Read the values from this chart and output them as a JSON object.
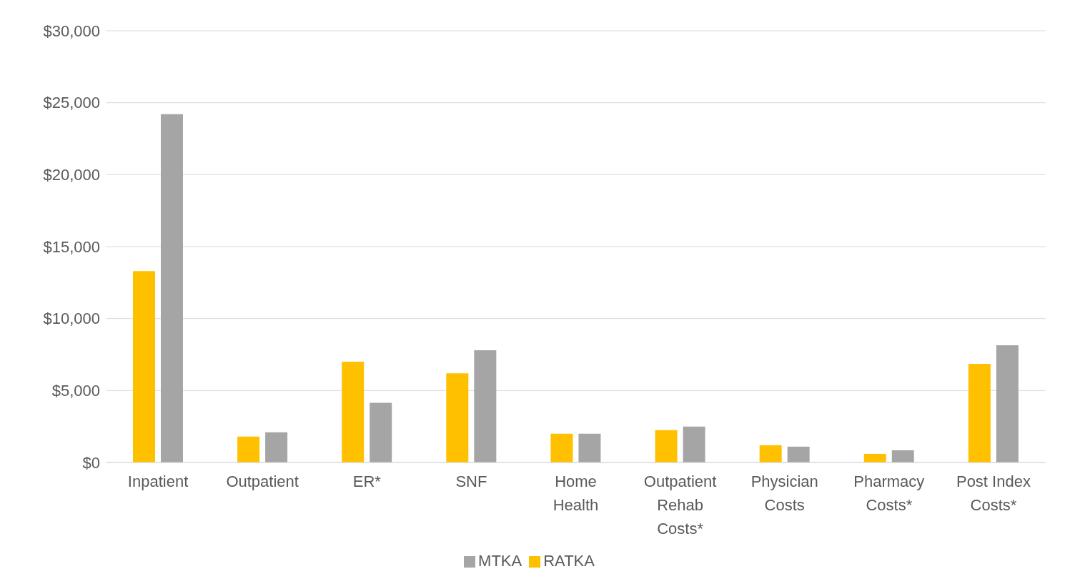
{
  "chart_data": {
    "type": "bar",
    "categories": [
      "Inpatient",
      "Outpatient",
      "ER*",
      "SNF",
      "Home Health",
      "Outpatient Rehab Costs*",
      "Physician Costs",
      "Pharmacy Costs*",
      "Post Index Costs*"
    ],
    "series": [
      {
        "name": "RATKA",
        "color": "#ffc000",
        "values": [
          13300,
          1800,
          7000,
          6200,
          2000,
          2250,
          1200,
          600,
          6850
        ]
      },
      {
        "name": "MTKA",
        "color": "#a5a5a5",
        "values": [
          24200,
          2100,
          4150,
          7800,
          2000,
          2500,
          1100,
          850,
          8150
        ]
      }
    ],
    "ylim": [
      0,
      30000
    ],
    "yticks": [
      {
        "value": 0,
        "label": "$0"
      },
      {
        "value": 5000,
        "label": "$5,000"
      },
      {
        "value": 10000,
        "label": "$10,000"
      },
      {
        "value": 15000,
        "label": "$15,000"
      },
      {
        "value": 20000,
        "label": "$20,000"
      },
      {
        "value": 25000,
        "label": "$25,000"
      },
      {
        "value": 30000,
        "label": "$30,000"
      }
    ],
    "grid": "y",
    "legend": "bottom"
  }
}
